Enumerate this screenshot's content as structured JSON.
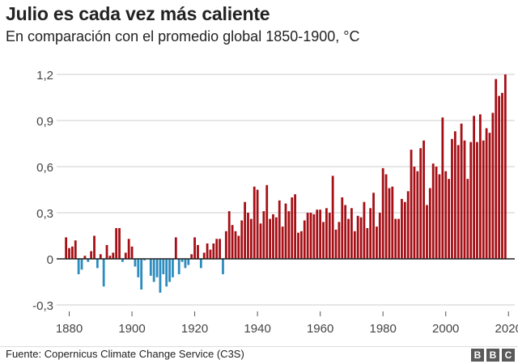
{
  "header": {
    "title": "Julio es cada vez más caliente",
    "subtitle": "En comparación con el promedio global 1850-1900, °C"
  },
  "footer": {
    "source": "Fuente: Copernicus Climate Change Service (C3S)",
    "logo_letters": [
      "B",
      "B",
      "C"
    ]
  },
  "colors": {
    "positive_bar": "#a50f15",
    "negative_bar": "#2b8cbe",
    "grid": "#cccccc",
    "zero_line": "#222222"
  },
  "chart_data": {
    "type": "bar",
    "title": "Julio es cada vez más caliente",
    "subtitle": "En comparación con el promedio global 1850-1900, °C",
    "xlabel": "",
    "ylabel": "",
    "ylim": [
      -0.3,
      1.2
    ],
    "xlim": [
      1876,
      2022
    ],
    "grid": true,
    "legend": "none",
    "yticks": [
      -0.3,
      0,
      0.3,
      0.6,
      0.9,
      1.2
    ],
    "ytick_labels": [
      "-0,3",
      "0",
      "0,3",
      "0,6",
      "0,9",
      "1,2"
    ],
    "xticks": [
      1880,
      1900,
      1920,
      1940,
      1960,
      1980,
      2000,
      2020
    ],
    "xtick_labels": [
      "1880",
      "1900",
      "1920",
      "1940",
      "1960",
      "1980",
      "2000",
      "2020"
    ],
    "series": [
      {
        "x": [
          1879,
          1880,
          1881,
          1882,
          1883,
          1884,
          1885,
          1886,
          1887,
          1888,
          1889,
          1890,
          1891,
          1892,
          1893,
          1894,
          1895,
          1896,
          1897,
          1898,
          1899,
          1900,
          1901,
          1902,
          1903,
          1904,
          1905,
          1906,
          1907,
          1908,
          1909,
          1910,
          1911,
          1912,
          1913,
          1914,
          1915,
          1916,
          1917,
          1918,
          1919,
          1920,
          1921,
          1922,
          1923,
          1924,
          1925,
          1926,
          1927,
          1928,
          1929,
          1930,
          1931,
          1932,
          1933,
          1934,
          1935,
          1936,
          1937,
          1938,
          1939,
          1940,
          1941,
          1942,
          1943,
          1944,
          1945,
          1946,
          1947,
          1948,
          1949,
          1950,
          1951,
          1952,
          1953,
          1954,
          1955,
          1956,
          1957,
          1958,
          1959,
          1960,
          1961,
          1962,
          1963,
          1964,
          1965,
          1966,
          1967,
          1968,
          1969,
          1970,
          1971,
          1972,
          1973,
          1974,
          1975,
          1976,
          1977,
          1978,
          1979,
          1980,
          1981,
          1982,
          1983,
          1984,
          1985,
          1986,
          1987,
          1988,
          1989,
          1990,
          1991,
          1992,
          1993,
          1994,
          1995,
          1996,
          1997,
          1998,
          1999,
          2000,
          2001,
          2002,
          2003,
          2004,
          2005,
          2006,
          2007,
          2008,
          2009,
          2010,
          2011,
          2012,
          2013,
          2014,
          2015,
          2016,
          2017,
          2018,
          2019
        ],
        "values": [
          0.14,
          0.07,
          0.08,
          0.12,
          -0.1,
          -0.07,
          0.02,
          -0.02,
          0.05,
          0.15,
          -0.06,
          0.03,
          -0.18,
          0.09,
          0.02,
          0.04,
          0.2,
          0.2,
          -0.02,
          0.04,
          0.13,
          0.08,
          -0.05,
          -0.12,
          -0.2,
          -0.01,
          0.0,
          -0.11,
          -0.15,
          -0.12,
          -0.22,
          -0.1,
          -0.18,
          -0.15,
          -0.12,
          0.14,
          -0.1,
          -0.02,
          -0.06,
          -0.04,
          0.03,
          0.14,
          0.09,
          -0.06,
          0.04,
          0.1,
          0.06,
          0.1,
          0.13,
          0.13,
          -0.1,
          0.18,
          0.31,
          0.22,
          0.18,
          0.15,
          0.25,
          0.37,
          0.3,
          0.26,
          0.47,
          0.45,
          0.23,
          0.31,
          0.48,
          0.26,
          0.29,
          0.27,
          0.38,
          0.21,
          0.36,
          0.31,
          0.4,
          0.42,
          0.17,
          0.18,
          0.25,
          0.3,
          0.3,
          0.29,
          0.32,
          0.32,
          0.24,
          0.33,
          0.3,
          0.54,
          0.19,
          0.24,
          0.4,
          0.35,
          0.26,
          0.33,
          0.18,
          0.28,
          0.27,
          0.37,
          0.2,
          0.33,
          0.43,
          0.21,
          0.3,
          0.59,
          0.55,
          0.46,
          0.47,
          0.26,
          0.26,
          0.39,
          0.37,
          0.44,
          0.71,
          0.6,
          0.57,
          0.72,
          0.77,
          0.35,
          0.46,
          0.62,
          0.6,
          0.55,
          0.92,
          0.57,
          0.52,
          0.78,
          0.83,
          0.74,
          0.88,
          0.77,
          0.52,
          0.76,
          0.93,
          0.76,
          0.94,
          0.77,
          0.85,
          0.82,
          0.95,
          1.17,
          1.06,
          1.08,
          1.2
        ]
      }
    ]
  }
}
